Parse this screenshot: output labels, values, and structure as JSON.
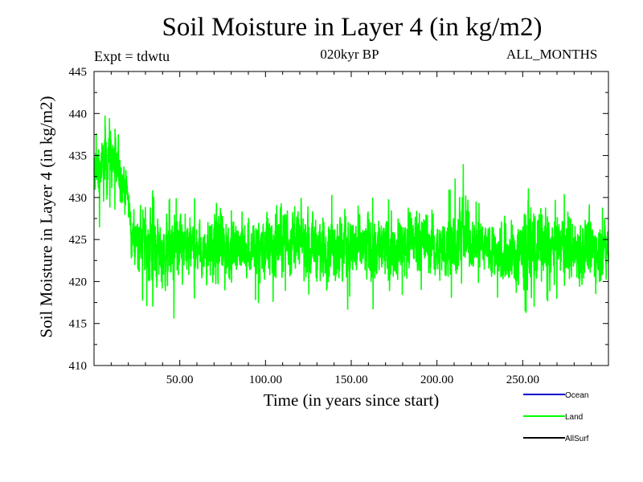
{
  "chart_data": {
    "type": "line",
    "title": "Soil Moisture in Layer 4 (in kg/m2)",
    "experiment": "Expt = tdwtu",
    "period": "020kyr BP",
    "season": "ALL_MONTHS",
    "xlabel": "Time (in years since start)",
    "ylabel": "Soil Moisture in Layer 4 (in kg/m2)",
    "xlim": [
      0,
      300
    ],
    "ylim": [
      410,
      445
    ],
    "xticks": [
      50,
      100,
      150,
      200,
      250
    ],
    "xtick_labels": [
      "50.00",
      "100.00",
      "150.00",
      "200.00",
      "250.00"
    ],
    "yticks": [
      410,
      415,
      420,
      425,
      430,
      435,
      440,
      445
    ],
    "ytick_labels": [
      "410",
      "415",
      "420",
      "425",
      "430",
      "435",
      "440",
      "445"
    ],
    "series": [
      {
        "name": "Ocean",
        "color": "#0000cc",
        "values": []
      },
      {
        "name": "Land",
        "color": "#00ff00",
        "envelope": {
          "x": [
            0,
            5,
            10,
            15,
            20,
            22,
            30,
            40,
            55,
            60,
            76,
            80,
            100,
            115,
            130,
            150,
            170,
            190,
            200,
            210,
            215,
            230,
            245,
            250,
            270,
            285,
            300
          ],
          "high": [
            437,
            440,
            441,
            438,
            433,
            430,
            432,
            430,
            430,
            430,
            431,
            429,
            431,
            433,
            430,
            431,
            430,
            432,
            429,
            432,
            434,
            430,
            430,
            433,
            431,
            430,
            429
          ],
          "low": [
            425,
            427,
            429,
            428,
            425,
            420,
            417,
            416,
            415,
            419,
            415,
            419,
            417,
            419,
            418,
            416,
            417,
            419,
            418,
            418,
            420,
            419,
            415,
            416,
            418,
            416,
            418
          ],
          "mean": [
            433,
            434,
            435,
            433,
            430,
            425,
            425,
            424,
            424,
            424,
            424,
            424,
            424,
            425,
            424,
            424,
            424,
            425,
            424,
            424,
            425,
            424,
            423,
            424,
            424,
            424,
            424
          ]
        }
      },
      {
        "name": "AllSurf",
        "color": "#000000",
        "values": []
      }
    ],
    "legend": [
      "Ocean",
      "Land",
      "AllSurf"
    ],
    "legend_position": "bottom-right"
  }
}
